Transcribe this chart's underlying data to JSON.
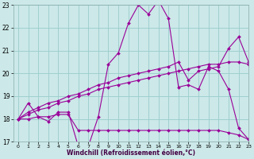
{
  "xlabel": "Windchill (Refroidissement éolien,°C)",
  "xlim": [
    -0.5,
    23
  ],
  "ylim": [
    17,
    23
  ],
  "yticks": [
    17,
    18,
    19,
    20,
    21,
    22,
    23
  ],
  "xticks": [
    0,
    1,
    2,
    3,
    4,
    5,
    6,
    7,
    8,
    9,
    10,
    11,
    12,
    13,
    14,
    15,
    16,
    17,
    18,
    19,
    20,
    21,
    22,
    23
  ],
  "bg_color": "#cce8e8",
  "grid_color": "#99cccc",
  "line_color": "#990099",
  "line1_y": [
    18.0,
    18.7,
    18.1,
    17.9,
    18.3,
    18.3,
    16.8,
    16.8,
    18.1,
    20.4,
    20.9,
    22.2,
    23.0,
    22.6,
    23.2,
    22.4,
    19.4,
    19.5,
    19.3,
    20.3,
    20.1,
    19.3,
    17.6,
    17.1
  ],
  "line2_y": [
    18.0,
    18.0,
    18.1,
    18.1,
    18.2,
    18.2,
    17.5,
    17.5,
    17.5,
    17.5,
    17.5,
    17.5,
    17.5,
    17.5,
    17.5,
    17.5,
    17.5,
    17.5,
    17.5,
    17.5,
    17.5,
    17.4,
    17.3,
    17.1
  ],
  "line3_y": [
    18.0,
    18.3,
    18.5,
    18.7,
    18.8,
    19.0,
    19.1,
    19.3,
    19.5,
    19.6,
    19.8,
    19.9,
    20.0,
    20.1,
    20.2,
    20.3,
    20.5,
    19.7,
    20.1,
    20.2,
    20.3,
    21.1,
    21.6,
    20.5
  ],
  "line4_y": [
    18.0,
    18.2,
    18.4,
    18.5,
    18.7,
    18.8,
    19.0,
    19.1,
    19.3,
    19.4,
    19.5,
    19.6,
    19.7,
    19.8,
    19.9,
    20.0,
    20.1,
    20.2,
    20.3,
    20.4,
    20.4,
    20.5,
    20.5,
    20.4
  ]
}
